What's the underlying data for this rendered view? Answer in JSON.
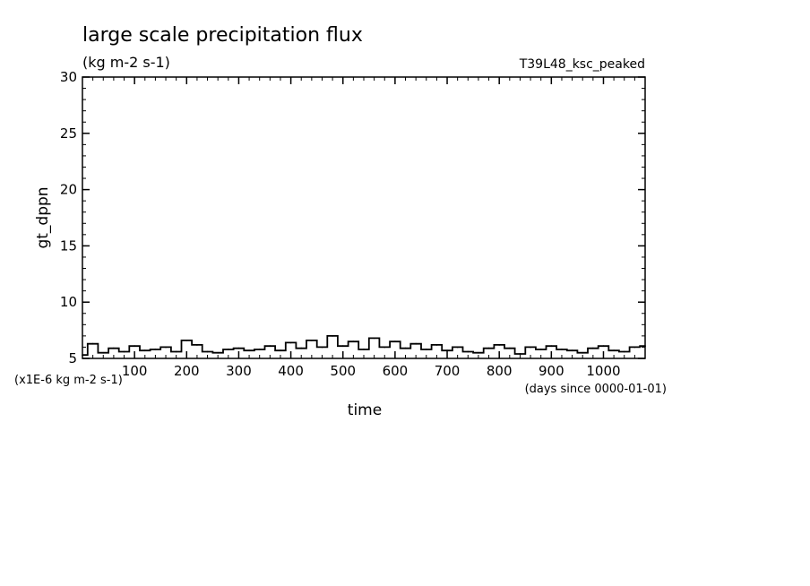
{
  "chart_data": {
    "type": "line",
    "title": "large scale precipitation flux",
    "units": "(kg m-2 s-1)",
    "run_label": "T39L48_ksc_peaked",
    "ylabel": "gt_dppn",
    "xlabel": "time",
    "y_scale_note": "(x1E-6 kg m-2 s-1)",
    "x_units_note": "(days since 0000-01-01)",
    "ylim": [
      5,
      30
    ],
    "xlim": [
      0,
      1080
    ],
    "y_ticks": [
      "5",
      "10",
      "15",
      "20",
      "25",
      "30"
    ],
    "x_ticks": [
      "100",
      "200",
      "300",
      "400",
      "500",
      "600",
      "700",
      "800",
      "900",
      "1000"
    ],
    "grid": false,
    "series": [
      {
        "x": [
          0,
          20,
          40,
          60,
          80,
          100,
          120,
          140,
          160,
          180,
          200,
          220,
          240,
          260,
          280,
          300,
          320,
          340,
          360,
          380,
          400,
          420,
          440,
          460,
          480,
          500,
          520,
          540,
          560,
          580,
          600,
          620,
          640,
          660,
          680,
          700,
          720,
          740,
          760,
          780,
          800,
          820,
          840,
          860,
          880,
          900,
          920,
          940,
          960,
          980,
          1000,
          1020,
          1040,
          1060,
          1080
        ],
        "values": [
          5.3,
          6.3,
          5.5,
          5.9,
          5.6,
          6.1,
          5.7,
          5.8,
          6.0,
          5.6,
          6.6,
          6.2,
          5.6,
          5.5,
          5.8,
          5.9,
          5.7,
          5.8,
          6.1,
          5.7,
          6.4,
          5.9,
          6.6,
          6.0,
          7.0,
          6.1,
          6.5,
          5.8,
          6.8,
          6.0,
          6.5,
          5.9,
          6.3,
          5.8,
          6.2,
          5.7,
          6.0,
          5.6,
          5.5,
          5.9,
          6.2,
          5.9,
          5.4,
          6.0,
          5.8,
          6.1,
          5.8,
          5.7,
          5.5,
          5.9,
          6.1,
          5.7,
          5.6,
          6.0,
          6.1
        ]
      }
    ]
  }
}
